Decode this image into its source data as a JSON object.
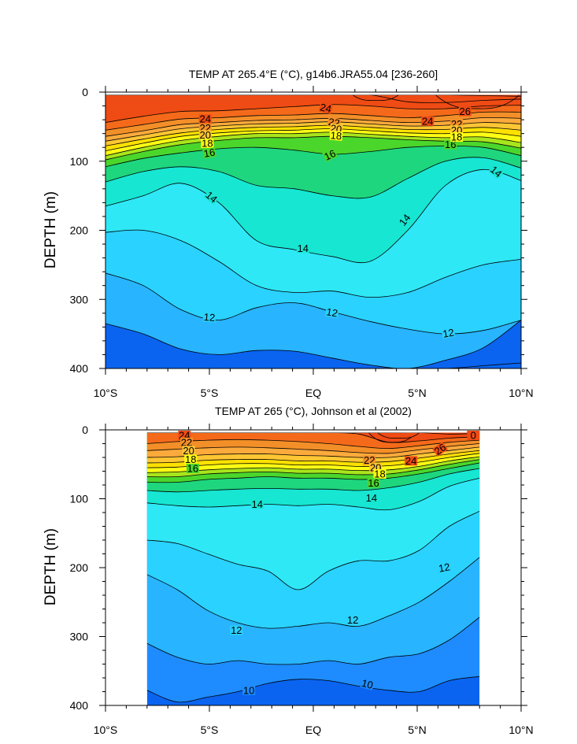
{
  "colors": {
    "fill_scale": [
      "#0a64f0",
      "#1e8cff",
      "#28b4ff",
      "#2ad2ff",
      "#2ee8f6",
      "#17e6d2",
      "#1ed67e",
      "#4bd62c",
      "#a9e51c",
      "#ffff14",
      "#ffe100",
      "#ffc633",
      "#fcaa3c",
      "#f38f28",
      "#f56a1a",
      "#ef4b14"
    ],
    "line": "#000000",
    "background": "#ffffff"
  },
  "chart_data": [
    {
      "type": "contour",
      "title": "TEMP AT 265.4°E (°C), g14b6.JRA55.04 [236-260]",
      "xlabel": "",
      "ylabel": "DEPTH (m)",
      "xlim": [
        -10,
        10
      ],
      "ylim": [
        0,
        400
      ],
      "x_ticks": [
        -10,
        -5,
        0,
        5,
        10
      ],
      "x_tick_labels": [
        "10°S",
        "5°S",
        "EQ",
        "5°N",
        "10°N"
      ],
      "y_ticks": [
        0,
        100,
        200,
        300,
        400
      ],
      "y_tick_labels": [
        "0",
        "100",
        "200",
        "300",
        "400"
      ],
      "data_xlim": [
        -10,
        10
      ],
      "data_top_depth": 4,
      "levels": [
        {
          "value": 9,
          "depth": [
            400,
            400,
            400,
            400,
            400,
            400,
            400,
            400,
            400,
            400,
            396,
            392
          ]
        },
        {
          "value": 11,
          "depth": [
            335,
            350,
            372,
            380,
            374,
            375,
            385,
            395,
            400,
            388,
            370,
            330
          ]
        },
        {
          "value": 12,
          "depth": [
            262,
            280,
            315,
            330,
            312,
            305,
            318,
            332,
            343,
            350,
            345,
            330
          ]
        },
        {
          "value": 13,
          "depth": [
            203,
            200,
            215,
            245,
            280,
            290,
            288,
            297,
            290,
            268,
            250,
            242
          ]
        },
        {
          "value": 14,
          "depth": [
            165,
            150,
            132,
            160,
            215,
            228,
            238,
            245,
            200,
            135,
            112,
            128
          ]
        },
        {
          "value": 15,
          "depth": [
            130,
            115,
            108,
            115,
            135,
            140,
            150,
            152,
            125,
            100,
            95,
            110
          ]
        },
        {
          "value": 16,
          "depth": [
            108,
            96,
            88,
            82,
            80,
            84,
            90,
            86,
            80,
            78,
            80,
            92
          ]
        },
        {
          "value": 17,
          "depth": [
            98,
            86,
            76,
            70,
            66,
            66,
            64,
            66,
            69,
            71,
            72,
            81
          ]
        },
        {
          "value": 18,
          "depth": [
            92,
            80,
            70,
            64,
            60,
            60,
            58,
            61,
            64,
            66,
            65,
            73
          ]
        },
        {
          "value": 19,
          "depth": [
            85,
            74,
            64,
            59,
            56,
            55,
            53,
            56,
            59,
            60,
            58,
            64
          ]
        },
        {
          "value": 20,
          "depth": [
            78,
            68,
            59,
            54,
            51,
            50,
            48,
            51,
            54,
            54,
            51,
            55
          ]
        },
        {
          "value": 21,
          "depth": [
            71,
            62,
            53,
            49,
            46,
            45,
            43,
            46,
            49,
            48,
            44,
            46
          ]
        },
        {
          "value": 22,
          "depth": [
            64,
            56,
            47,
            44,
            41,
            40,
            38,
            41,
            44,
            42,
            37,
            38
          ]
        },
        {
          "value": 23,
          "depth": [
            55,
            47,
            39,
            37,
            34,
            33,
            31,
            34,
            37,
            34,
            29,
            29
          ]
        },
        {
          "value": 24,
          "depth": [
            44,
            35,
            28,
            27,
            24,
            21,
            18,
            20,
            24,
            24,
            20,
            19
          ]
        },
        {
          "value": 25,
          "depth": [
            4,
            4,
            4,
            4,
            4,
            4,
            4,
            4,
            14,
            15,
            12,
            10
          ]
        },
        {
          "value": 26,
          "depth": [
            4,
            4,
            4,
            4,
            4,
            4,
            4,
            4,
            4,
            4,
            5,
            6
          ]
        }
      ],
      "surface_patches": [
        {
          "value": 25,
          "x_from": 1.8,
          "x_to": 4.2,
          "max_depth": 12
        },
        {
          "value": 26,
          "x_from": 5.8,
          "x_to": 10.0,
          "max_depth": 24
        }
      ],
      "contour_labels": [
        {
          "text": "24",
          "x": -5.2,
          "y": 39,
          "rotate": 0
        },
        {
          "text": "24",
          "x": 0.6,
          "y": 23,
          "rotate": 12
        },
        {
          "text": "22",
          "x": -5.2,
          "y": 52,
          "rotate": 0
        },
        {
          "text": "22",
          "x": 1.0,
          "y": 44,
          "rotate": 10
        },
        {
          "text": "20",
          "x": -5.2,
          "y": 62,
          "rotate": 0
        },
        {
          "text": "20",
          "x": 1.1,
          "y": 53,
          "rotate": 8
        },
        {
          "text": "18",
          "x": -5.1,
          "y": 74,
          "rotate": 0
        },
        {
          "text": "18",
          "x": 1.1,
          "y": 63,
          "rotate": 5
        },
        {
          "text": "16",
          "x": -5.0,
          "y": 88,
          "rotate": -10
        },
        {
          "text": "16",
          "x": 0.8,
          "y": 91,
          "rotate": -25
        },
        {
          "text": "16",
          "x": 6.6,
          "y": 76,
          "rotate": 0
        },
        {
          "text": "14",
          "x": -4.9,
          "y": 152,
          "rotate": 40
        },
        {
          "text": "14",
          "x": -0.5,
          "y": 226,
          "rotate": 0
        },
        {
          "text": "14",
          "x": 4.4,
          "y": 185,
          "rotate": -52
        },
        {
          "text": "14",
          "x": 8.8,
          "y": 115,
          "rotate": 40
        },
        {
          "text": "12",
          "x": -5.0,
          "y": 326,
          "rotate": 5
        },
        {
          "text": "12",
          "x": 0.9,
          "y": 319,
          "rotate": 10
        },
        {
          "text": "12",
          "x": 6.5,
          "y": 349,
          "rotate": -10
        },
        {
          "text": "26",
          "x": 7.3,
          "y": 28,
          "rotate": 0
        },
        {
          "text": "24",
          "x": 5.5,
          "y": 42,
          "rotate": 0
        },
        {
          "text": "22",
          "x": 6.9,
          "y": 46,
          "rotate": 0
        },
        {
          "text": "20",
          "x": 6.9,
          "y": 55,
          "rotate": 0
        },
        {
          "text": "18",
          "x": 6.9,
          "y": 65,
          "rotate": 0
        }
      ]
    },
    {
      "type": "contour",
      "title": "TEMP AT 265 (°C), Johnson et al (2002)",
      "xlabel": "",
      "ylabel": "DEPTH (m)",
      "xlim": [
        -10,
        10
      ],
      "ylim": [
        0,
        400
      ],
      "x_ticks": [
        -10,
        -5,
        0,
        5,
        10
      ],
      "x_tick_labels": [
        "10°S",
        "5°S",
        "EQ",
        "5°N",
        "10°N"
      ],
      "y_ticks": [
        0,
        100,
        200,
        300,
        400
      ],
      "y_tick_labels": [
        "0",
        "100",
        "200",
        "300",
        "400"
      ],
      "data_xlim": [
        -8,
        8
      ],
      "data_top_depth": 4,
      "levels": [
        {
          "value": 10,
          "depth": [
            378,
            395,
            388,
            380,
            368,
            362,
            364,
            372,
            378,
            380,
            364,
            358
          ]
        },
        {
          "value": 11,
          "depth": [
            310,
            330,
            340,
            335,
            340,
            340,
            335,
            340,
            330,
            325,
            305,
            272
          ]
        },
        {
          "value": 12,
          "depth": [
            210,
            232,
            262,
            280,
            288,
            285,
            280,
            285,
            270,
            250,
            220,
            185
          ]
        },
        {
          "value": 13,
          "depth": [
            160,
            165,
            180,
            195,
            205,
            232,
            205,
            190,
            190,
            175,
            140,
            118
          ]
        },
        {
          "value": 14,
          "depth": [
            106,
            110,
            112,
            110,
            108,
            110,
            108,
            112,
            116,
            104,
            82,
            70
          ]
        },
        {
          "value": 15,
          "depth": [
            88,
            90,
            88,
            86,
            85,
            86,
            86,
            88,
            84,
            76,
            64,
            56
          ]
        },
        {
          "value": 16,
          "depth": [
            76,
            76,
            72,
            70,
            68,
            70,
            70,
            72,
            70,
            64,
            56,
            48
          ]
        },
        {
          "value": 17,
          "depth": [
            68,
            68,
            64,
            62,
            61,
            63,
            63,
            65,
            64,
            58,
            50,
            43
          ]
        },
        {
          "value": 18,
          "depth": [
            62,
            61,
            58,
            56,
            55,
            57,
            57,
            59,
            58,
            53,
            45,
            39
          ]
        },
        {
          "value": 19,
          "depth": [
            55,
            54,
            51,
            49,
            49,
            51,
            51,
            53,
            52,
            47,
            40,
            34
          ]
        },
        {
          "value": 20,
          "depth": [
            48,
            47,
            44,
            43,
            43,
            45,
            45,
            47,
            46,
            41,
            35,
            30
          ]
        },
        {
          "value": 21,
          "depth": [
            40,
            39,
            36,
            35,
            35,
            37,
            38,
            40,
            40,
            35,
            30,
            25
          ]
        },
        {
          "value": 22,
          "depth": [
            30,
            28,
            26,
            25,
            26,
            28,
            30,
            33,
            34,
            29,
            24,
            20
          ]
        },
        {
          "value": 23,
          "depth": [
            20,
            17,
            15,
            14,
            15,
            17,
            20,
            24,
            27,
            23,
            18,
            15
          ]
        },
        {
          "value": 24,
          "depth": [
            4,
            4,
            4,
            4,
            4,
            4,
            4,
            6,
            18,
            16,
            12,
            10
          ]
        },
        {
          "value": 25,
          "depth": [
            4,
            4,
            4,
            4,
            4,
            4,
            4,
            4,
            4,
            4,
            6,
            5
          ]
        }
      ],
      "surface_patches": [
        {
          "value": 25,
          "x_from": 2.6,
          "x_to": 5.0,
          "max_depth": 18
        },
        {
          "value": 26,
          "x_from": 3.0,
          "x_to": 5.2,
          "max_depth": 12
        }
      ],
      "contour_labels": [
        {
          "text": "24",
          "x": -6.2,
          "y": 8,
          "rotate": 0
        },
        {
          "text": "22",
          "x": -6.1,
          "y": 18,
          "rotate": 0
        },
        {
          "text": "20",
          "x": -6.0,
          "y": 30,
          "rotate": 0
        },
        {
          "text": "18",
          "x": -5.9,
          "y": 43,
          "rotate": 0
        },
        {
          "text": "16",
          "x": -5.8,
          "y": 56,
          "rotate": 0
        },
        {
          "text": "22",
          "x": 2.7,
          "y": 44,
          "rotate": 0
        },
        {
          "text": "20",
          "x": 3.0,
          "y": 55,
          "rotate": 0
        },
        {
          "text": "18",
          "x": 3.2,
          "y": 64,
          "rotate": 0
        },
        {
          "text": "16",
          "x": 2.9,
          "y": 77,
          "rotate": 0
        },
        {
          "text": "24",
          "x": 4.7,
          "y": 45,
          "rotate": 0
        },
        {
          "text": "26",
          "x": 6.1,
          "y": 28,
          "rotate": -35
        },
        {
          "text": "0",
          "x": 7.7,
          "y": 8,
          "rotate": 0
        },
        {
          "text": "14",
          "x": -2.7,
          "y": 108,
          "rotate": 0
        },
        {
          "text": "14",
          "x": 2.8,
          "y": 99,
          "rotate": 0
        },
        {
          "text": "12",
          "x": 6.3,
          "y": 200,
          "rotate": -10
        },
        {
          "text": "12",
          "x": 1.9,
          "y": 276,
          "rotate": 0
        },
        {
          "text": "12",
          "x": -3.7,
          "y": 291,
          "rotate": 0
        },
        {
          "text": "10",
          "x": -3.1,
          "y": 378,
          "rotate": 0
        },
        {
          "text": "10",
          "x": 2.6,
          "y": 369,
          "rotate": 15
        }
      ]
    }
  ]
}
